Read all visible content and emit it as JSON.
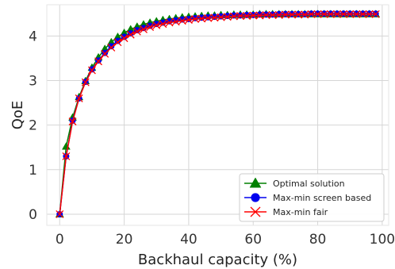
{
  "chart_data": {
    "type": "line",
    "title": "",
    "xlabel": "Backhaul capacity (%)",
    "ylabel": "QoE",
    "xlim": [
      -4,
      102
    ],
    "ylim": [
      -0.25,
      4.7
    ],
    "xticks": [
      0,
      20,
      40,
      60,
      80,
      100
    ],
    "yticks": [
      0,
      1,
      2,
      3,
      4
    ],
    "grid": true,
    "legend_position": "lower-right",
    "x": [
      0,
      2,
      4,
      6,
      8,
      10,
      12,
      14,
      16,
      18,
      20,
      22,
      24,
      26,
      28,
      30,
      32,
      34,
      36,
      38,
      40,
      42,
      44,
      46,
      48,
      50,
      52,
      54,
      56,
      58,
      60,
      62,
      64,
      66,
      68,
      70,
      72,
      74,
      76,
      78,
      80,
      82,
      84,
      86,
      88,
      90,
      92,
      94,
      96,
      98
    ],
    "series": [
      {
        "name": "Optimal solution",
        "color": "#008000",
        "marker": "triangle",
        "values": [
          0,
          1.52,
          2.17,
          2.63,
          2.99,
          3.29,
          3.52,
          3.71,
          3.86,
          3.98,
          4.07,
          4.15,
          4.21,
          4.26,
          4.3,
          4.33,
          4.36,
          4.38,
          4.4,
          4.42,
          4.43,
          4.44,
          4.45,
          4.46,
          4.46,
          4.47,
          4.47,
          4.48,
          4.48,
          4.48,
          4.48,
          4.49,
          4.49,
          4.49,
          4.49,
          4.49,
          4.49,
          4.49,
          4.49,
          4.49,
          4.49,
          4.49,
          4.49,
          4.49,
          4.49,
          4.49,
          4.49,
          4.49,
          4.49,
          4.49
        ]
      },
      {
        "name": "Max-min screen based",
        "color": "#0000ee",
        "marker": "circle",
        "values": [
          0,
          1.3,
          2.1,
          2.6,
          2.97,
          3.25,
          3.45,
          3.62,
          3.77,
          3.89,
          3.98,
          4.06,
          4.13,
          4.18,
          4.23,
          4.27,
          4.3,
          4.33,
          4.35,
          4.37,
          4.38,
          4.4,
          4.41,
          4.42,
          4.43,
          4.44,
          4.45,
          4.46,
          4.46,
          4.47,
          4.47,
          4.48,
          4.48,
          4.48,
          4.49,
          4.49,
          4.49,
          4.49,
          4.49,
          4.5,
          4.5,
          4.5,
          4.5,
          4.5,
          4.5,
          4.5,
          4.5,
          4.5,
          4.5,
          4.5
        ]
      },
      {
        "name": "Max-min fair",
        "color": "#ff0000",
        "marker": "x",
        "values": [
          0,
          1.3,
          2.08,
          2.6,
          2.96,
          3.23,
          3.43,
          3.6,
          3.74,
          3.86,
          3.95,
          4.03,
          4.1,
          4.15,
          4.2,
          4.24,
          4.27,
          4.3,
          4.32,
          4.34,
          4.36,
          4.38,
          4.39,
          4.4,
          4.41,
          4.42,
          4.43,
          4.44,
          4.45,
          4.45,
          4.46,
          4.46,
          4.47,
          4.47,
          4.47,
          4.48,
          4.48,
          4.48,
          4.48,
          4.49,
          4.49,
          4.49,
          4.49,
          4.49,
          4.49,
          4.49,
          4.49,
          4.49,
          4.49,
          4.49
        ]
      }
    ]
  }
}
